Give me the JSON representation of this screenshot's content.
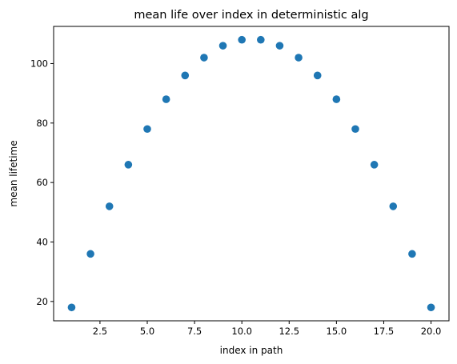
{
  "chart_data": {
    "type": "scatter",
    "title": "mean life over index in deterministic alg",
    "xlabel": "index in path",
    "ylabel": "mean lifetime",
    "xlim": [
      0.05,
      20.95
    ],
    "ylim": [
      13.5,
      112.5
    ],
    "xticks": [
      2.5,
      5.0,
      7.5,
      10.0,
      12.5,
      15.0,
      17.5,
      20.0
    ],
    "xtick_labels": [
      "2.5",
      "5.0",
      "7.5",
      "10.0",
      "12.5",
      "15.0",
      "17.5",
      "20.0"
    ],
    "yticks": [
      20,
      40,
      60,
      80,
      100
    ],
    "ytick_labels": [
      "20",
      "40",
      "60",
      "80",
      "100"
    ],
    "grid": false,
    "marker_color": "#1f77b4",
    "series": [
      {
        "x": [
          1,
          2,
          3,
          4,
          5,
          6,
          7,
          8,
          9,
          10,
          11,
          12,
          13,
          14,
          15,
          16,
          17,
          18,
          19,
          20
        ],
        "y": [
          18,
          36,
          52,
          66,
          78,
          88,
          96,
          102,
          106,
          108,
          108,
          106,
          102,
          96,
          88,
          78,
          66,
          52,
          36,
          18
        ]
      }
    ]
  }
}
